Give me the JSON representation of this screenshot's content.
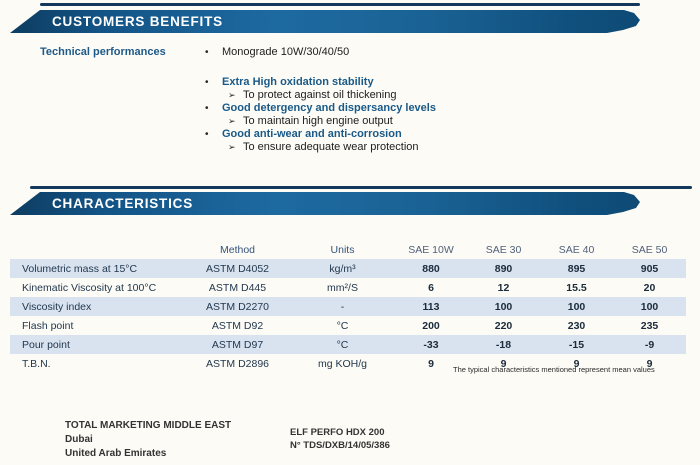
{
  "benefits": {
    "title": "CUSTOMERS BENEFITS",
    "label": "Technical performances",
    "bullet_marker": "•",
    "sub_marker": "➢",
    "intro": "Monograde 10W/30/40/50",
    "items": [
      {
        "heading": "Extra High oxidation stability",
        "detail": "To protect against oil thickening"
      },
      {
        "heading": "Good detergency and dispersancy levels",
        "detail": "To maintain high engine output"
      },
      {
        "heading": "Good anti-wear and anti-corrosion",
        "detail": "To ensure adequate wear protection"
      }
    ]
  },
  "characteristics": {
    "title": "CHARACTERISTICS",
    "table": {
      "columns": [
        "Method",
        "Units",
        "SAE 10W",
        "SAE 30",
        "SAE 40",
        "SAE 50"
      ],
      "rows": [
        {
          "label": "Volumetric mass at 15°C",
          "method": "ASTM D4052",
          "units": "kg/m³",
          "values": [
            "880",
            "890",
            "895",
            "905"
          ]
        },
        {
          "label": "Kinematic Viscosity at 100°C",
          "method": "ASTM D445",
          "units": "mm²/S",
          "values": [
            "6",
            "12",
            "15.5",
            "20"
          ]
        },
        {
          "label": "Viscosity index",
          "method": "ASTM D2270",
          "units": "-",
          "values": [
            "113",
            "100",
            "100",
            "100"
          ]
        },
        {
          "label": "Flash point",
          "method": "ASTM D92",
          "units": "°C",
          "values": [
            "200",
            "220",
            "230",
            "235"
          ]
        },
        {
          "label": "Pour point",
          "method": "ASTM D97",
          "units": "°C",
          "values": [
            "-33",
            "-18",
            "-15",
            "-9"
          ]
        },
        {
          "label": "T.B.N.",
          "method": "ASTM D2896",
          "units": "mg KOH/g",
          "values": [
            "9",
            "9",
            "9",
            "9"
          ]
        }
      ]
    },
    "footnote": "The typical characteristics mentioned represent mean values"
  },
  "footer": {
    "company": "TOTAL MARKETING MIDDLE EAST",
    "city": "Dubai",
    "country": "United Arab Emirates",
    "product": "ELF PERFO HDX 200",
    "reference": "N° TDS/DXB/14/05/386"
  },
  "colors": {
    "banner_blue": "#1d6aa1",
    "banner_dark": "#0d3c60",
    "topline_navy": "#12395c",
    "heading_blue": "#1a5a88",
    "row_stripe": "#d9e3f0"
  }
}
